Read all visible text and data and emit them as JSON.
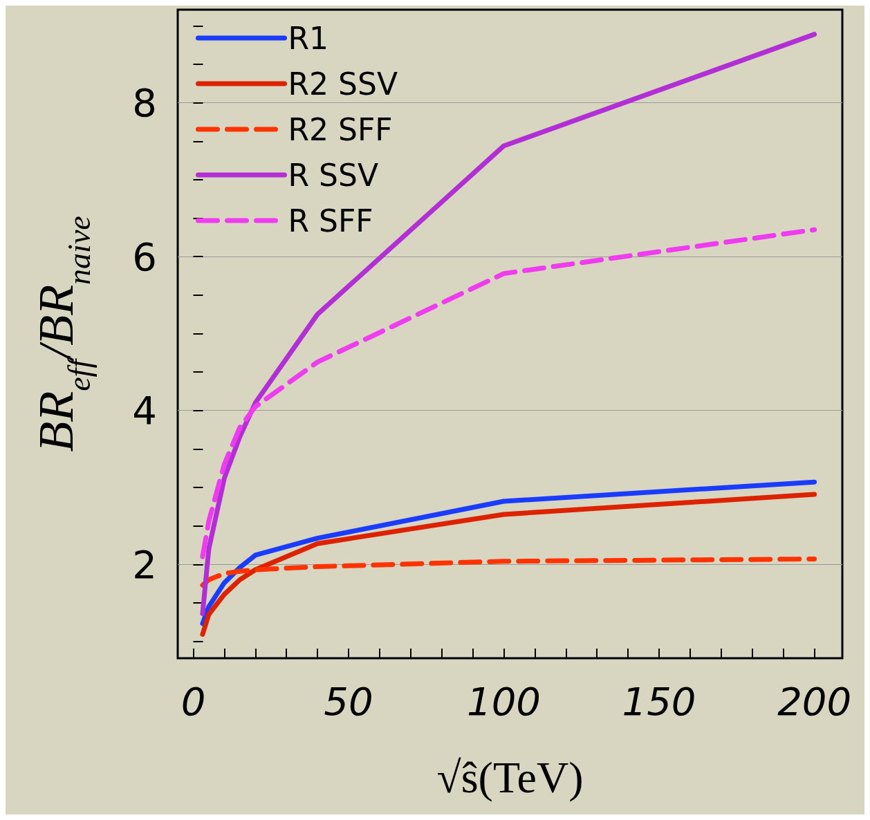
{
  "chart_data": {
    "type": "line",
    "xlabel": "√ŝ(TeV)",
    "ylabel": "BR$_{eff}$/BR$_{naive}$",
    "x": [
      3,
      5,
      10,
      15,
      20,
      40,
      100,
      200
    ],
    "series": [
      {
        "name": "R1",
        "color": "#1a3cff",
        "line_style": "solid",
        "values": [
          1.23,
          1.45,
          1.76,
          1.96,
          2.12,
          2.34,
          2.82,
          3.07
        ]
      },
      {
        "name": "R2 SSV",
        "color": "#dd2200",
        "line_style": "solid",
        "values": [
          1.09,
          1.35,
          1.61,
          1.8,
          1.93,
          2.27,
          2.65,
          2.91
        ]
      },
      {
        "name": "R2 SFF",
        "color": "#ff3300",
        "line_style": "dashed",
        "values": [
          1.73,
          1.8,
          1.88,
          1.91,
          1.93,
          1.97,
          2.04,
          2.07
        ]
      },
      {
        "name": "R SSV",
        "color": "#b22fd6",
        "line_style": "solid",
        "values": [
          1.36,
          2.2,
          3.12,
          3.66,
          4.1,
          5.25,
          7.44,
          8.89
        ]
      },
      {
        "name": "R SFF",
        "color": "#f03cf0",
        "line_style": "dashed",
        "values": [
          2.1,
          2.56,
          3.3,
          3.78,
          4.05,
          4.63,
          5.78,
          6.35
        ]
      }
    ],
    "xlim": [
      -5,
      209
    ],
    "xticks": [
      0,
      {
        "value": 10,
        "label": null
      },
      {
        "value": 20,
        "label": null
      },
      {
        "value": 30,
        "label": null
      },
      {
        "value": 40,
        "label": null
      },
      50,
      {
        "value": 60,
        "label": null
      },
      {
        "value": 70,
        "label": null
      },
      {
        "value": 80,
        "label": null
      },
      {
        "value": 90,
        "label": null
      },
      100,
      {
        "value": 110,
        "label": null
      },
      {
        "value": 120,
        "label": null
      },
      {
        "value": 130,
        "label": null
      },
      {
        "value": 140,
        "label": null
      },
      150,
      {
        "value": 160,
        "label": null
      },
      {
        "value": 170,
        "label": null
      },
      {
        "value": 180,
        "label": null
      },
      {
        "value": 190,
        "label": null
      },
      200
    ],
    "ylim": [
      0.78,
      9.21
    ],
    "yticks": [
      {
        "value": 1,
        "label": null
      },
      {
        "value": 1.5,
        "label": null
      },
      2,
      {
        "value": 2.5,
        "label": null
      },
      {
        "value": 3,
        "label": null
      },
      {
        "value": 3.5,
        "label": null
      },
      4,
      {
        "value": 4.5,
        "label": null
      },
      {
        "value": 5,
        "label": null
      },
      {
        "value": 5.5,
        "label": null
      },
      6,
      {
        "value": 6.5,
        "label": null
      },
      {
        "value": 7,
        "label": null
      },
      {
        "value": 7.5,
        "label": null
      },
      8,
      {
        "value": 8.5,
        "label": null
      },
      {
        "value": 9,
        "label": null
      }
    ],
    "grid": "y",
    "legend": "top left",
    "marker": "none"
  }
}
